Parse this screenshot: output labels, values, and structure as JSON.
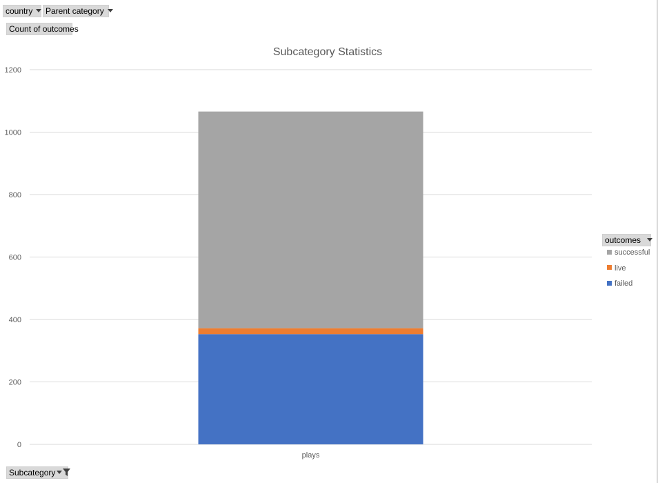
{
  "filters": {
    "country_label": "country",
    "parent_category_label": "Parent category"
  },
  "value_field_label": "Count of outcomes",
  "axis_field_label": "Subcategory",
  "legend_field_label": "outcomes",
  "colors": {
    "successful": "#a5a5a5",
    "live": "#ed7d31",
    "failed": "#4472c4",
    "gridline": "#d9d9d9",
    "text": "#595959"
  },
  "chart_data": {
    "type": "bar",
    "stacked": true,
    "title": "Subcategory Statistics",
    "categories": [
      "plays"
    ],
    "series": [
      {
        "name": "failed",
        "values": [
          353
        ]
      },
      {
        "name": "live",
        "values": [
          19
        ]
      },
      {
        "name": "successful",
        "values": [
          694
        ]
      }
    ],
    "ylim": [
      0,
      1200
    ],
    "yticks": [
      0,
      200,
      400,
      600,
      800,
      1000,
      1200
    ],
    "grid": true,
    "legend_position": "right",
    "legend_order": [
      "successful",
      "live",
      "failed"
    ]
  }
}
